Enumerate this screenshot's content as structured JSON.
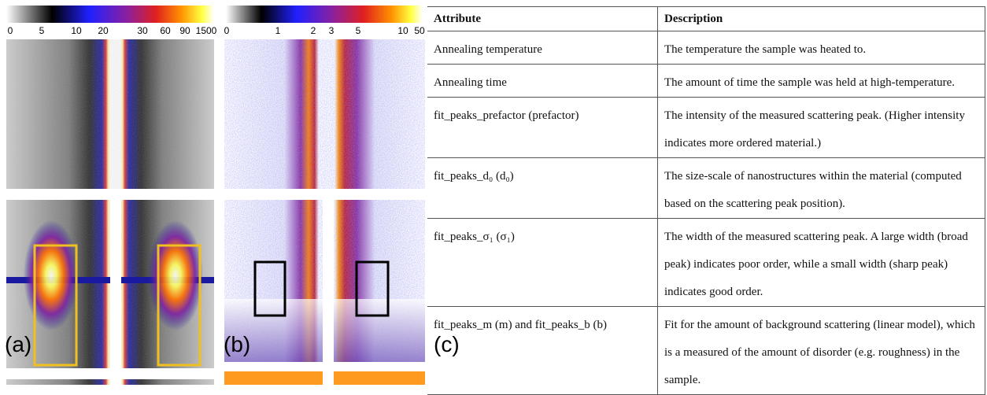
{
  "panel_a": {
    "label": "(a)",
    "colorbar_ticks": [
      "0",
      "5",
      "10",
      "20",
      "30",
      "60",
      "90",
      "1500"
    ]
  },
  "panel_b": {
    "label": "(b)",
    "colorbar_ticks": [
      "0",
      "1",
      "2",
      "3",
      "5",
      "10",
      "50"
    ]
  },
  "panel_c": {
    "label": "(c)",
    "table": {
      "header": [
        "Attribute",
        "Description"
      ],
      "rows": [
        [
          "Annealing temperature",
          "The temperature the sample was heated to."
        ],
        [
          "Annealing time",
          "The amount of time the sample was held at high-temperature."
        ],
        [
          "fit_peaks_prefactor (prefactor)",
          "The intensity of the measured scattering peak. (Higher intensity indicates more ordered material.)"
        ],
        [
          "fit_peaks_d₀ (d₀)",
          "The size-scale of nanostructures within the material (computed based on the scattering peak position)."
        ],
        [
          "fit_peaks_σ₁ (σ₁)",
          "The width of the measured scattering peak. A large width (broad peak) indicates poor order, while a small width (sharp peak) indicates good order."
        ],
        [
          "fit_peaks_m (m) and fit_peaks_b (b)",
          "Fit for the amount of background scattering (linear model), which is a measured of the amount of disorder (e.g. roughness) in the sample."
        ]
      ]
    }
  }
}
